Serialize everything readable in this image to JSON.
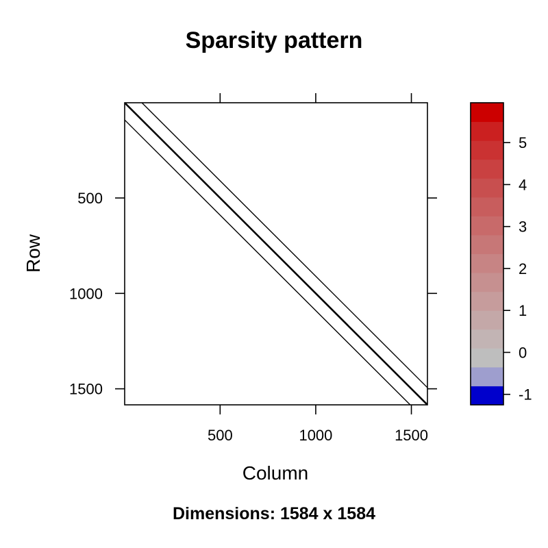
{
  "chart_data": {
    "type": "heatmap",
    "title": "Sparsity pattern",
    "subtitle": "Dimensions: 1584 x 1584",
    "xlabel": "Column",
    "ylabel": "Row",
    "nrow": 1584,
    "ncol": 1584,
    "xlim": [
      1,
      1584
    ],
    "ylim": [
      1584,
      1
    ],
    "x_ticks": [
      500,
      1000,
      1500
    ],
    "y_ticks": [
      500,
      1000,
      1500
    ],
    "diagonals": [
      {
        "offset": -90
      },
      {
        "offset": -3
      },
      {
        "offset": 3
      },
      {
        "offset": 90
      }
    ],
    "colorkey": {
      "ticks": [
        -1,
        0,
        1,
        2,
        3,
        4,
        5
      ],
      "range": [
        -1.25,
        5.95
      ],
      "bins": [
        {
          "from": -1.25,
          "to": -0.8,
          "color": "#0000CC"
        },
        {
          "from": -0.8,
          "to": -0.35,
          "color": "#9E9ECE"
        },
        {
          "from": -0.35,
          "to": 0.1,
          "color": "#BEBEBE"
        },
        {
          "from": 0.1,
          "to": 0.55,
          "color": "#C2B4B4"
        },
        {
          "from": 0.55,
          "to": 1.0,
          "color": "#C4A8A8"
        },
        {
          "from": 1.0,
          "to": 1.45,
          "color": "#C69C9C"
        },
        {
          "from": 1.45,
          "to": 1.9,
          "color": "#C69090"
        },
        {
          "from": 1.9,
          "to": 2.35,
          "color": "#C78484"
        },
        {
          "from": 2.35,
          "to": 2.8,
          "color": "#C77777"
        },
        {
          "from": 2.8,
          "to": 3.25,
          "color": "#C86A6A"
        },
        {
          "from": 3.25,
          "to": 3.7,
          "color": "#C85D5D"
        },
        {
          "from": 3.7,
          "to": 4.15,
          "color": "#C84F4F"
        },
        {
          "from": 4.15,
          "to": 4.6,
          "color": "#C94141"
        },
        {
          "from": 4.6,
          "to": 5.05,
          "color": "#CA3232"
        },
        {
          "from": 5.05,
          "to": 5.5,
          "color": "#CB2020"
        },
        {
          "from": 5.5,
          "to": 5.95,
          "color": "#CC0000"
        }
      ]
    }
  }
}
